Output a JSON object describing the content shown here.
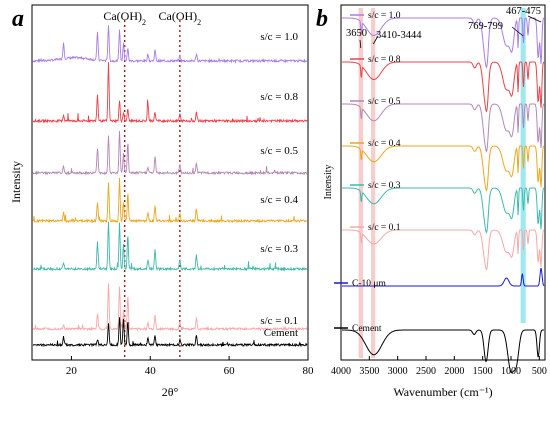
{
  "chart_data": [
    {
      "panel": "a",
      "type": "line",
      "xlabel": "2θ°",
      "ylabel": "Intensity",
      "xlim": [
        10,
        80
      ],
      "xticks": [
        "20",
        "40",
        "60",
        "80"
      ],
      "annotations": [
        {
          "text": "Ca(OH)",
          "sub": "2",
          "x": 33.5
        },
        {
          "text": "Ca(OH)",
          "sub": "2",
          "x": 47.5
        }
      ],
      "peak_positions": [
        18.0,
        26.6,
        29.4,
        32.2,
        33.2,
        34.3,
        39.4,
        41.2,
        47.5,
        51.7
      ],
      "series": [
        {
          "label": "s/c = 1.0",
          "color": "#a97de6",
          "peaks": [
            0.45,
            0.8,
            1.0,
            0.9,
            0.5,
            0.35,
            0.2,
            0.3,
            0.15,
            0.2
          ],
          "hump": 0.35
        },
        {
          "label": "s/c = 0.8",
          "color": "#e8434a",
          "peaks": [
            0.1,
            0.45,
            1.0,
            0.35,
            0.15,
            0.2,
            0.3,
            0.15,
            0.12,
            0.15
          ],
          "hump": 0.0
        },
        {
          "label": "s/c = 0.5",
          "color": "#b487b6",
          "peaks": [
            0.15,
            0.6,
            0.9,
            1.0,
            0.45,
            0.7,
            0.15,
            0.4,
            0.2,
            0.25
          ],
          "hump": 0.0
        },
        {
          "label": "s/c = 0.4",
          "color": "#e9a81e",
          "peaks": [
            0.2,
            0.45,
            0.9,
            1.0,
            0.45,
            0.65,
            0.2,
            0.35,
            0.2,
            0.3
          ],
          "hump": 0.0
        },
        {
          "label": "s/c = 0.3",
          "color": "#3fb8b0",
          "peaks": [
            0.15,
            0.55,
            1.0,
            0.95,
            0.5,
            0.7,
            0.2,
            0.4,
            0.2,
            0.3
          ],
          "hump": 0.0
        },
        {
          "label": "s/c = 0.1",
          "color": "#f4a9a9",
          "peaks": [
            0.1,
            0.35,
            1.0,
            0.95,
            0.4,
            0.75,
            0.15,
            0.3,
            0.15,
            0.25
          ],
          "hump": 0.0
        },
        {
          "label": "Cement",
          "color": "#000000",
          "peaks": [
            0.3,
            0.2,
            0.8,
            1.0,
            0.9,
            0.85,
            0.25,
            0.35,
            0.2,
            0.35
          ],
          "hump": 0.0
        }
      ]
    },
    {
      "panel": "b",
      "type": "line",
      "xlabel": "Wavenumber (cm⁻¹)",
      "ylabel": "Intensity",
      "xlim": [
        4000,
        400
      ],
      "xticks": [
        "4000",
        "3500",
        "3000",
        "2500",
        "2000",
        "1500",
        "1000",
        "500"
      ],
      "annotations": [
        {
          "text": "3650",
          "x": 3650
        },
        {
          "text": "3410-3444",
          "x": 3430
        },
        {
          "text": "769-799",
          "x": 785
        },
        {
          "text": "467-475",
          "x": 470
        }
      ],
      "series": [
        {
          "label": "s/c = 1.0",
          "color": "#a97de6"
        },
        {
          "label": "s/c = 0.8",
          "color": "#e8434a"
        },
        {
          "label": "s/c = 0.5",
          "color": "#b487b6"
        },
        {
          "label": "s/c = 0.4",
          "color": "#e9a81e"
        },
        {
          "label": "s/c = 0.3",
          "color": "#3fb8b0"
        },
        {
          "label": "s/c = 0.1",
          "color": "#f4a9a9"
        },
        {
          "label": "C-10 μm",
          "color": "#1a1adb"
        },
        {
          "label": "Cement",
          "color": "#000000"
        }
      ]
    }
  ]
}
